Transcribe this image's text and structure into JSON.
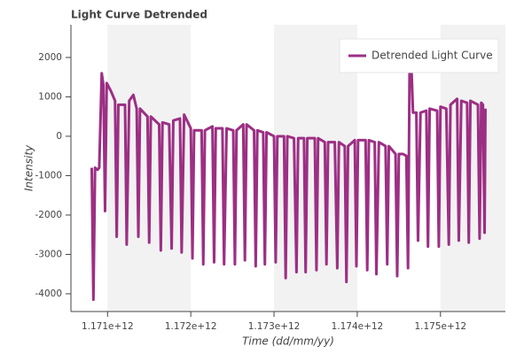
{
  "chart_data": {
    "type": "line",
    "title": "Light Curve Detrended",
    "x_label": "Time (dd/mm/yy)",
    "y_label": "Intensity",
    "xlim": [
      1170560000000.0,
      1175780000000.0
    ],
    "ylim": [
      -4450,
      2830
    ],
    "xticks": [
      {
        "value": 1171000000000.0,
        "label": "1.171e+12"
      },
      {
        "value": 1172000000000.0,
        "label": "1.172e+12"
      },
      {
        "value": 1173000000000.0,
        "label": "1.173e+12"
      },
      {
        "value": 1174000000000.0,
        "label": "1.174e+12"
      },
      {
        "value": 1175000000000.0,
        "label": "1.175e+12"
      }
    ],
    "yticks": [
      -4000,
      -3000,
      -2000,
      -1000,
      0,
      1000,
      2000
    ],
    "band_fill": "#f2f2f2",
    "legend": "top-right",
    "x": [
      1170810000000.0,
      1170830000000.0,
      1170850000000.0,
      1170880000000.0,
      1170900000000.0,
      1170930000000.0,
      1170950000000.0,
      1170970000000.0,
      1170990000000.0,
      1171040000000.0,
      1171090000000.0,
      1171110000000.0,
      1171130000000.0,
      1171210000000.0,
      1171230000000.0,
      1171260000000.0,
      1171310000000.0,
      1171350000000.0,
      1171370000000.0,
      1171390000000.0,
      1171480000000.0,
      1171500000000.0,
      1171520000000.0,
      1171620000000.0,
      1171640000000.0,
      1171660000000.0,
      1171740000000.0,
      1171770000000.0,
      1171790000000.0,
      1171870000000.0,
      1171890000000.0,
      1171920000000.0,
      1172000000000.0,
      1172020000000.0,
      1172040000000.0,
      1172130000000.0,
      1172150000000.0,
      1172170000000.0,
      1172260000000.0,
      1172280000000.0,
      1172300000000.0,
      1172380000000.0,
      1172400000000.0,
      1172430000000.0,
      1172510000000.0,
      1172530000000.0,
      1172550000000.0,
      1172630000000.0,
      1172650000000.0,
      1172670000000.0,
      1172760000000.0,
      1172780000000.0,
      1172800000000.0,
      1172870000000.0,
      1172890000000.0,
      1172910000000.0,
      1173000000000.0,
      1173020000000.0,
      1173040000000.0,
      1173120000000.0,
      1173140000000.0,
      1173160000000.0,
      1173240000000.0,
      1173270000000.0,
      1173290000000.0,
      1173360000000.0,
      1173380000000.0,
      1173400000000.0,
      1173490000000.0,
      1173510000000.0,
      1173530000000.0,
      1173610000000.0,
      1173630000000.0,
      1173650000000.0,
      1173730000000.0,
      1173760000000.0,
      1173780000000.0,
      1173850000000.0,
      1173870000000.0,
      1173890000000.0,
      1173970000000.0,
      1173990000000.0,
      1174010000000.0,
      1174100000000.0,
      1174120000000.0,
      1174140000000.0,
      1174210000000.0,
      1174230000000.0,
      1174260000000.0,
      1174340000000.0,
      1174360000000.0,
      1174380000000.0,
      1174460000000.0,
      1174480000000.0,
      1174500000000.0,
      1174550000000.0,
      1174590000000.0,
      1174610000000.0,
      1174630000000.0,
      1174650000000.0,
      1174670000000.0,
      1174710000000.0,
      1174730000000.0,
      1174760000000.0,
      1174830000000.0,
      1174850000000.0,
      1174870000000.0,
      1174960000000.0,
      1174980000000.0,
      1175000000000.0,
      1175070000000.0,
      1175100000000.0,
      1175120000000.0,
      1175200000000.0,
      1175220000000.0,
      1175250000000.0,
      1175320000000.0,
      1175340000000.0,
      1175360000000.0,
      1175450000000.0,
      1175470000000.0,
      1175490000000.0,
      1175510000000.0,
      1175530000000.0,
      1175540000000.0
    ],
    "series": [
      {
        "name": "Detrended Light Curve",
        "color": "#9c2f84",
        "values": [
          -800,
          -4150,
          -800,
          -850,
          -800,
          1600,
          1300,
          -1900,
          1350,
          1150,
          900,
          -2550,
          800,
          800,
          -2750,
          900,
          1050,
          700,
          -2550,
          700,
          500,
          -2700,
          500,
          300,
          -2900,
          350,
          300,
          -2850,
          400,
          450,
          -2950,
          550,
          200,
          -3100,
          150,
          150,
          -3250,
          150,
          250,
          -3200,
          200,
          200,
          -3250,
          200,
          150,
          -3250,
          150,
          300,
          -3150,
          300,
          150,
          -3300,
          150,
          100,
          -3250,
          100,
          0,
          -3200,
          0,
          0,
          -3600,
          0,
          -50,
          -3450,
          -50,
          -50,
          -3450,
          -50,
          -50,
          -3400,
          -50,
          -150,
          -3250,
          -150,
          -150,
          -3350,
          -150,
          -250,
          -3700,
          -250,
          -100,
          -3300,
          -100,
          -100,
          -3400,
          -100,
          -150,
          -3500,
          -150,
          -250,
          -3250,
          -250,
          -450,
          -3550,
          -450,
          -450,
          -500,
          -3350,
          2000,
          1800,
          600,
          600,
          -2650,
          600,
          650,
          -2800,
          700,
          650,
          -2800,
          750,
          700,
          -2750,
          800,
          950,
          -2650,
          900,
          850,
          -2700,
          900,
          800,
          -2600,
          850,
          800,
          -2450,
          700
        ]
      }
    ]
  }
}
